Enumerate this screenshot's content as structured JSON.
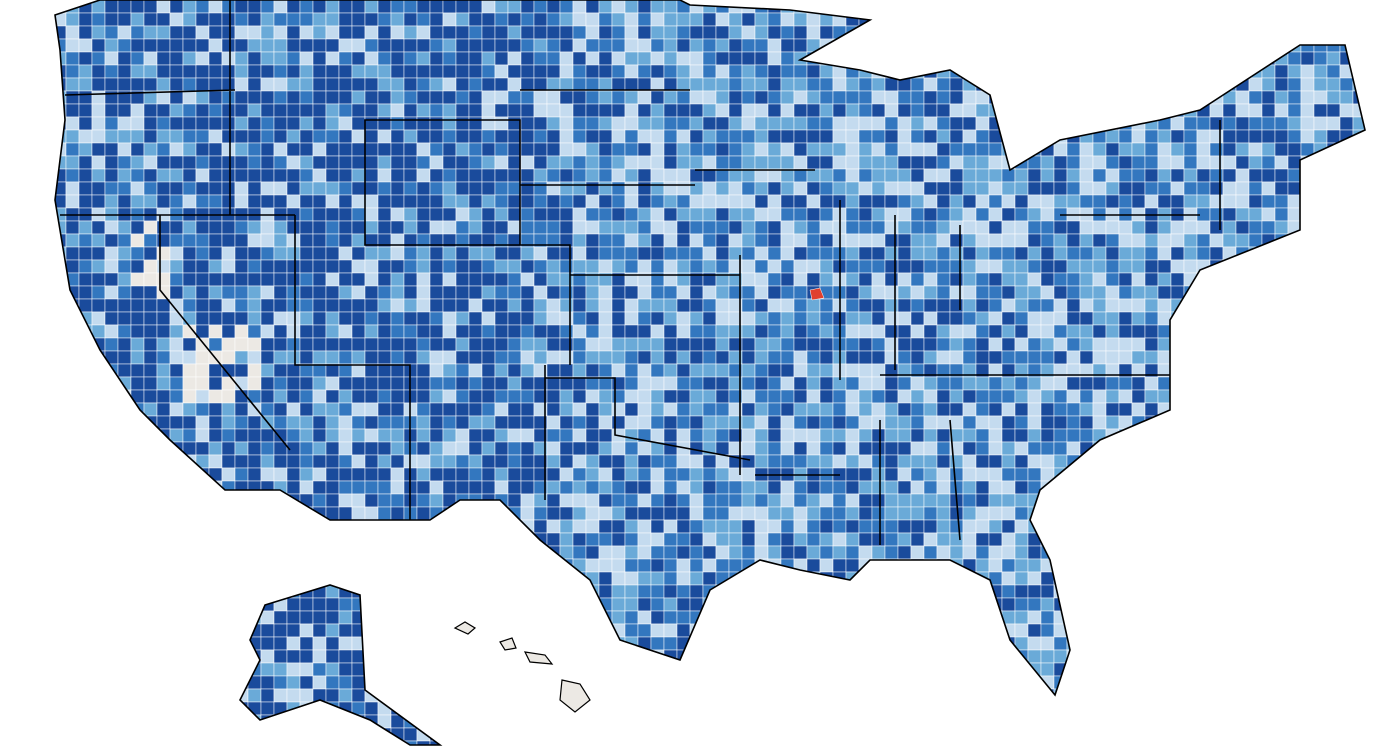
{
  "map": {
    "palette": [
      "#1a4b9c",
      "#3377bf",
      "#6aaad8",
      "#c4dbef"
    ],
    "no_data_color": "#ece9e4",
    "highlight_color": "#e0402e",
    "border_color": "#000000"
  }
}
